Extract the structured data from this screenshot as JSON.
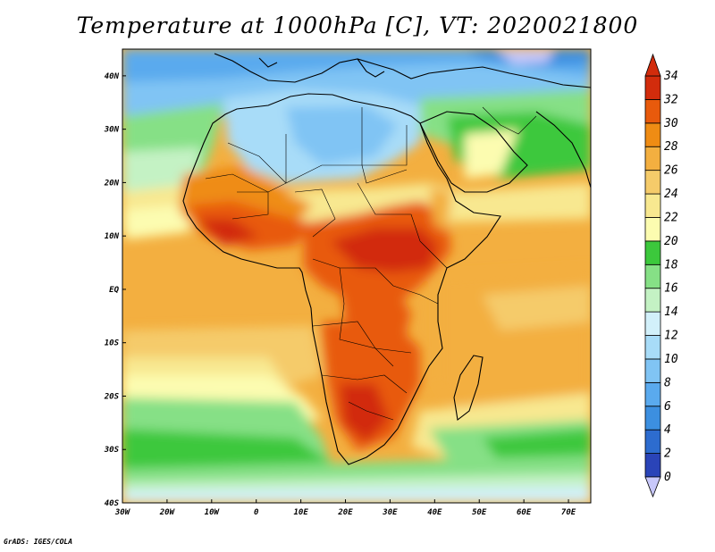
{
  "title": "Temperature at 1000hPa [C], VT: 2020021800",
  "credit": "GrADS: IGES/COLA",
  "chart_data": {
    "type": "heatmap",
    "variable": "Temperature at 1000hPa",
    "units": "C",
    "valid_time": "2020021800",
    "x_axis": {
      "range": [
        -30,
        75
      ],
      "ticks": [
        "30W",
        "20W",
        "10W",
        "0",
        "10E",
        "20E",
        "30E",
        "40E",
        "50E",
        "60E",
        "70E"
      ],
      "tick_values": [
        -30,
        -20,
        -10,
        0,
        10,
        20,
        30,
        40,
        50,
        60,
        70
      ]
    },
    "y_axis": {
      "range": [
        -40,
        45
      ],
      "ticks": [
        "40S",
        "30S",
        "20S",
        "10S",
        "EQ",
        "10N",
        "20N",
        "30N",
        "40N"
      ],
      "tick_values": [
        -40,
        -30,
        -20,
        -10,
        0,
        10,
        20,
        30,
        40
      ]
    },
    "colorbar": {
      "levels": [
        0,
        2,
        4,
        6,
        8,
        10,
        12,
        14,
        16,
        18,
        20,
        22,
        24,
        26,
        28,
        30,
        32,
        34
      ],
      "labels": [
        "0",
        "2",
        "4",
        "6",
        "8",
        "10",
        "12",
        "14",
        "16",
        "18",
        "20",
        "22",
        "24",
        "26",
        "28",
        "30",
        "32",
        "34"
      ],
      "colors": [
        "#1d1d8c",
        "#2a44b8",
        "#2d6ccf",
        "#3c8fe0",
        "#5aaaee",
        "#80c4f4",
        "#a8dcf8",
        "#d2f0fa",
        "#c4f2c4",
        "#86e086",
        "#3cc83c",
        "#fcfcb0",
        "#f8e890",
        "#f5cb6a",
        "#f3af40",
        "#ef8c14",
        "#e85a0c",
        "#d22c0c",
        "#c01010"
      ],
      "under_color": "#c8c8fa",
      "over_color": "#d22c0c"
    },
    "regions": [
      {
        "area": "Europe / northern Mediterranean (35N-45N)",
        "approx_temp_c": 8
      },
      {
        "area": "Sahara (20N-33N, 5W-30E)",
        "approx_temp_c": 14
      },
      {
        "area": "Arabian Peninsula",
        "approx_temp_c": 22
      },
      {
        "area": "Sahel / West Africa (8N-15N)",
        "approx_temp_c": 31
      },
      {
        "area": "Central Africa / Congo basin",
        "approx_temp_c": 30
      },
      {
        "area": "Southern Africa interior (15S-28S)",
        "approx_temp_c": 31
      },
      {
        "area": "Equatorial Atlantic & Indian Ocean",
        "approx_temp_c": 27
      },
      {
        "area": "Southern Ocean near 35S",
        "approx_temp_c": 18
      },
      {
        "area": "Southern Ocean near 40S",
        "approx_temp_c": 14
      }
    ]
  }
}
